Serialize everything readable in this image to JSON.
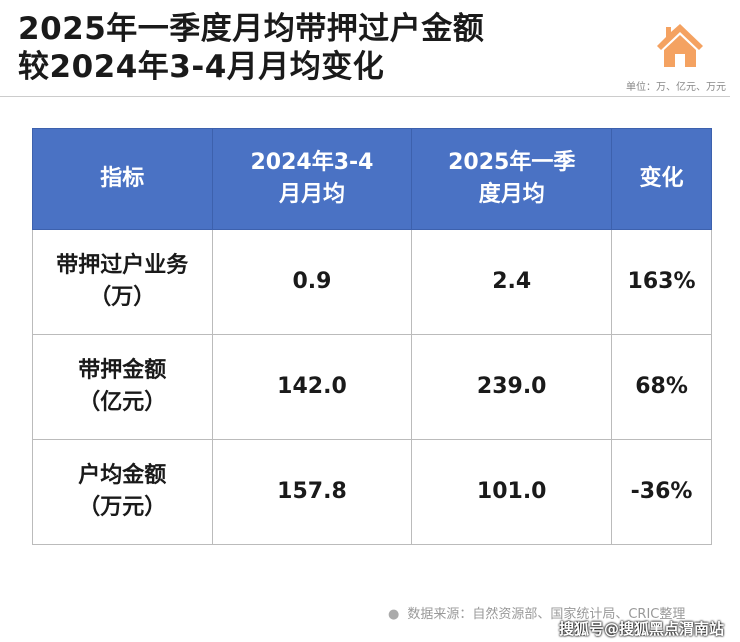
{
  "title": {
    "line1": "2025年一季度月均带押过户金额",
    "line2": "较2024年3-4月月均变化"
  },
  "unit": "单位：万、亿元、万元",
  "table": {
    "headers": [
      "指标",
      "2024年3-4月月均",
      "2025年一季度月均",
      "变化"
    ],
    "rows": [
      {
        "label": "带押过户业务",
        "unit": "（万）",
        "v2024": "0.9",
        "v2025": "2.4",
        "change": "163%"
      },
      {
        "label": "带押金额",
        "unit": "（亿元）",
        "v2024": "142.0",
        "v2025": "239.0",
        "change": "68%"
      },
      {
        "label": "户均金额",
        "unit": "（万元）",
        "v2024": "157.8",
        "v2025": "101.0",
        "change": "-36%"
      }
    ]
  },
  "source": "数据来源：自然资源部、国家统计局、CRIC整理",
  "watermark": "搜狐号@搜狐黑点渭南站",
  "colors": {
    "header": "#4a72c4",
    "icon": "#f4a261"
  }
}
